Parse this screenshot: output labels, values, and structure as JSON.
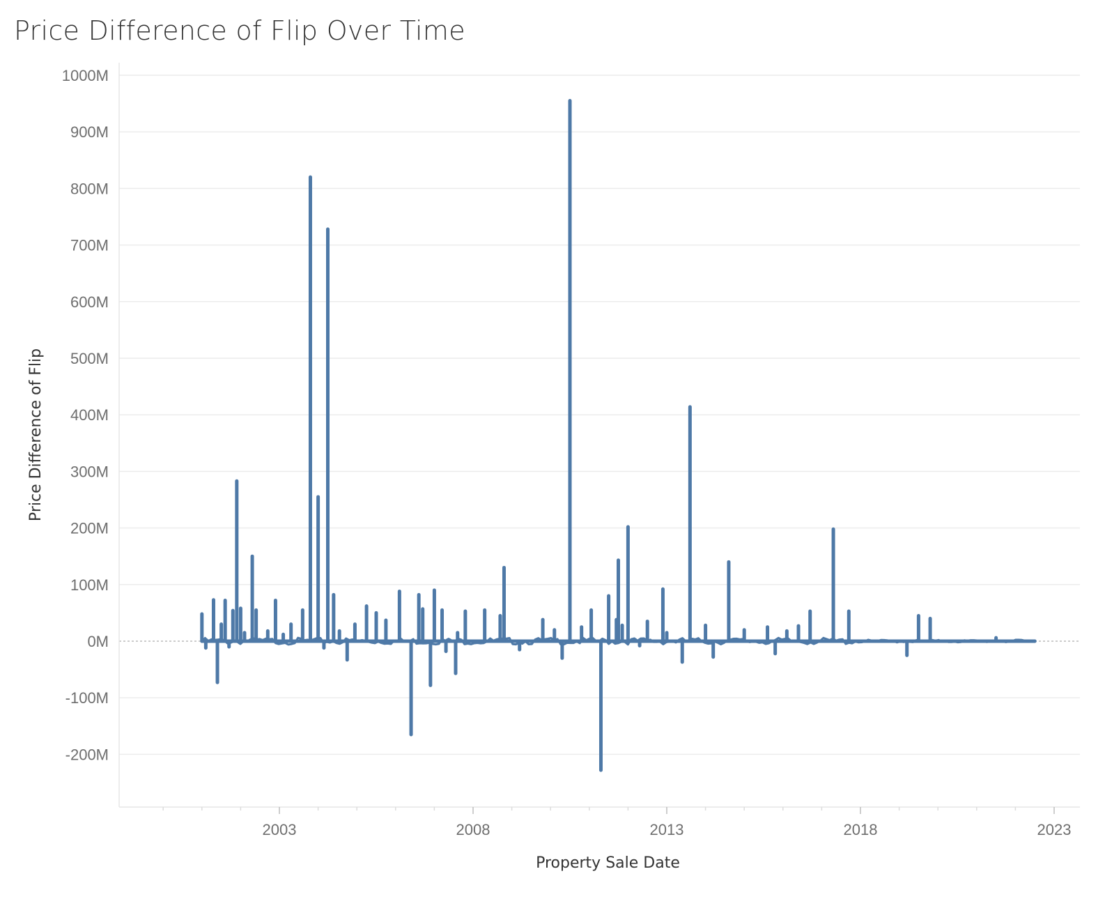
{
  "chart_data": {
    "type": "line",
    "title": "Price Difference of Flip Over Time",
    "xlabel": "Property Sale Date",
    "ylabel": "Price Difference of Flip",
    "x_tick_labels": [
      "2003",
      "2008",
      "2013",
      "2018",
      "2023"
    ],
    "y_tick_labels": [
      "1000M",
      "900M",
      "800M",
      "700M",
      "600M",
      "500M",
      "400M",
      "300M",
      "200M",
      "100M",
      "0M",
      "-100M",
      "-200M"
    ],
    "y_tick_values": [
      1000,
      900,
      800,
      700,
      600,
      500,
      400,
      300,
      200,
      100,
      0,
      -100,
      -200
    ],
    "xlim": [
      1999.9,
      2023.7
    ],
    "ylim": [
      -290,
      1015
    ],
    "grid": true,
    "color": "#4e79a7",
    "series": [
      {
        "x": [
          2001.0,
          2001.1,
          2001.3,
          2001.4,
          2001.5,
          2001.6,
          2001.7,
          2001.8,
          2001.9,
          2002.0,
          2002.1,
          2002.3,
          2002.4,
          2002.7,
          2002.9,
          2003.1,
          2003.3,
          2003.6,
          2003.8,
          2004.0,
          2004.15,
          2004.25,
          2004.4,
          2004.55,
          2004.75,
          2004.95,
          2005.25,
          2005.5,
          2005.75,
          2006.1,
          2006.4,
          2006.6,
          2006.7,
          2006.9,
          2007.0,
          2007.2,
          2007.3,
          2007.55,
          2007.6,
          2007.8,
          2008.3,
          2008.7,
          2008.8,
          2009.2,
          2009.8,
          2010.1,
          2010.3,
          2010.5,
          2010.8,
          2011.05,
          2011.3,
          2011.5,
          2011.7,
          2011.75,
          2011.85,
          2012.0,
          2012.3,
          2012.5,
          2012.9,
          2013.0,
          2013.4,
          2013.6,
          2014.0,
          2014.2,
          2014.6,
          2015.0,
          2015.6,
          2015.8,
          2016.1,
          2016.4,
          2016.7,
          2017.3,
          2017.7,
          2019.2,
          2019.5,
          2019.8,
          2021.5,
          2022.5
        ],
        "y": [
          48,
          -12,
          73,
          -73,
          30,
          72,
          -10,
          54,
          283,
          58,
          15,
          150,
          55,
          18,
          72,
          12,
          30,
          55,
          820,
          255,
          -12,
          728,
          82,
          18,
          -33,
          30,
          62,
          50,
          37,
          88,
          -165,
          82,
          57,
          -78,
          90,
          55,
          -18,
          -57,
          15,
          53,
          55,
          45,
          130,
          -15,
          38,
          20,
          -30,
          955,
          25,
          55,
          -228,
          80,
          38,
          143,
          28,
          202,
          -8,
          35,
          92,
          15,
          -37,
          414,
          28,
          -28,
          140,
          20,
          25,
          -22,
          18,
          27,
          53,
          198,
          53,
          -25,
          45,
          40,
          6,
          0
        ]
      }
    ]
  }
}
